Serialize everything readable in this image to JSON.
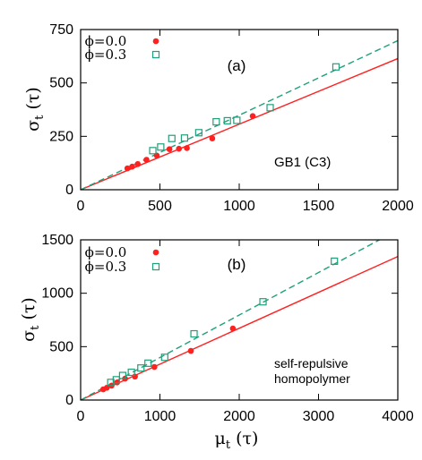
{
  "colors": {
    "phi0": "#ff2020",
    "phi03": "#1fa07a"
  },
  "chart_data": [
    {
      "type": "scatter",
      "panel_label": "(a)",
      "annotation": "GB1 (C3)",
      "xlim": [
        0,
        2000
      ],
      "ylim": [
        0,
        750
      ],
      "xticks": [
        0,
        500,
        1000,
        1500,
        2000
      ],
      "yticks": [
        0,
        250,
        500,
        750
      ],
      "ylabel_main": "σ",
      "ylabel_sub": "t",
      "ylabel_tail": " (τ)",
      "series": [
        {
          "name": "ϕ=0.0",
          "marker": "filled-circle",
          "color": "#ff2020",
          "line_style": "solid",
          "fit_slope": 0.307,
          "points": [
            [
              295,
              100
            ],
            [
              325,
              108
            ],
            [
              360,
              120
            ],
            [
              415,
              140
            ],
            [
              480,
              160
            ],
            [
              560,
              190
            ],
            [
              620,
              192
            ],
            [
              670,
              195
            ],
            [
              830,
              240
            ],
            [
              1085,
              345
            ]
          ]
        },
        {
          "name": "ϕ=0.3",
          "marker": "open-square",
          "color": "#1fa07a",
          "line_style": "dashed",
          "fit_slope": 0.349,
          "points": [
            [
              455,
              183
            ],
            [
              505,
              200
            ],
            [
              575,
              240
            ],
            [
              655,
              242
            ],
            [
              745,
              267
            ],
            [
              855,
              318
            ],
            [
              925,
              323
            ],
            [
              985,
              325
            ],
            [
              1195,
              384
            ],
            [
              1610,
              575
            ]
          ]
        }
      ]
    },
    {
      "type": "scatter",
      "panel_label": "(b)",
      "annotation": [
        "self-repulsive",
        "homopolymer"
      ],
      "xlim": [
        0,
        4000
      ],
      "ylim": [
        0,
        1500
      ],
      "xticks": [
        0,
        1000,
        2000,
        3000,
        4000
      ],
      "yticks": [
        0,
        500,
        1000,
        1500
      ],
      "xlabel_main": "μ",
      "xlabel_sub": "t",
      "xlabel_tail": " (τ)",
      "ylabel_main": "σ",
      "ylabel_sub": "t",
      "ylabel_tail": " (τ)",
      "series": [
        {
          "name": "ϕ=0.0",
          "marker": "filled-circle",
          "color": "#ff2020",
          "line_style": "solid",
          "fit_slope": 0.336,
          "points": [
            [
              285,
              100
            ],
            [
              330,
              115
            ],
            [
              390,
              135
            ],
            [
              460,
              165
            ],
            [
              560,
              200
            ],
            [
              685,
              220
            ],
            [
              930,
              310
            ],
            [
              1390,
              460
            ],
            [
              1920,
              670
            ]
          ]
        },
        {
          "name": "ϕ=0.3",
          "marker": "open-square",
          "color": "#1fa07a",
          "line_style": "dashed",
          "fit_slope": 0.398,
          "points": [
            [
              380,
              165
            ],
            [
              450,
              190
            ],
            [
              530,
              230
            ],
            [
              640,
              260
            ],
            [
              760,
              300
            ],
            [
              850,
              345
            ],
            [
              1060,
              400
            ],
            [
              1430,
              620
            ],
            [
              2300,
              920
            ],
            [
              3200,
              1300
            ]
          ]
        }
      ]
    }
  ]
}
